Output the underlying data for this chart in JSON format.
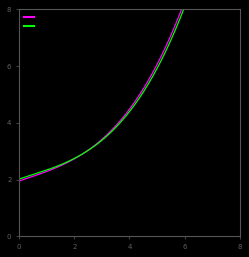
{
  "background_color": "#000000",
  "axes_facecolor": "#000000",
  "tick_color": "#606060",
  "line1_color": "#ff00ff",
  "line2_color": "#00ff00",
  "line1_label": " ",
  "line2_label": " ",
  "x_min": 0,
  "x_max": 8,
  "y_min": 0,
  "y_max": 8,
  "legend_fontsize": 5,
  "tick_fontsize": 5,
  "figsize": [
    2.49,
    2.57
  ],
  "dpi": 100,
  "spine_color": "#555555",
  "linewidth": 0.9
}
